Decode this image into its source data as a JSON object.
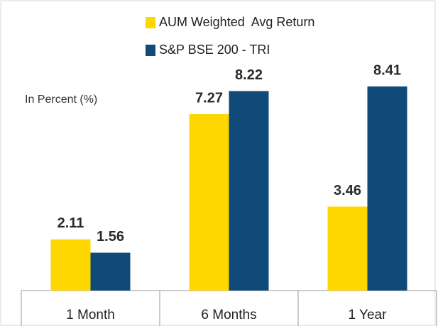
{
  "chart_data": {
    "type": "bar",
    "annotation": "In Percent (%)",
    "categories": [
      "1 Month",
      "6 Months",
      "1 Year"
    ],
    "series": [
      {
        "name": "AUM Weighted  Avg Return",
        "color": "#FFD700",
        "values": [
          2.11,
          7.27,
          3.46
        ]
      },
      {
        "name": "S&P BSE 200 - TRI",
        "color": "#0F4A78",
        "values": [
          1.56,
          8.22,
          8.41
        ]
      }
    ]
  }
}
